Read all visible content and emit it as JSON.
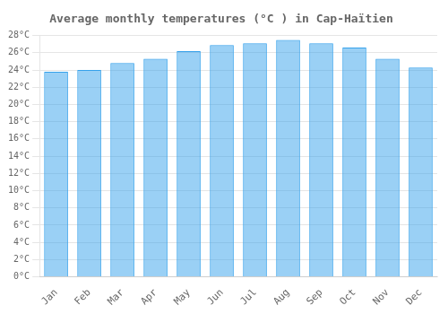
{
  "chart_data": {
    "type": "bar",
    "title": "Average monthly temperatures (°C ) in Cap-Haïtien",
    "categories": [
      "Jan",
      "Feb",
      "Mar",
      "Apr",
      "May",
      "Jun",
      "Jul",
      "Aug",
      "Sep",
      "Oct",
      "Nov",
      "Dec"
    ],
    "values": [
      23.8,
      24.0,
      24.8,
      25.3,
      26.2,
      26.9,
      27.1,
      27.5,
      27.1,
      26.6,
      25.3,
      24.3
    ],
    "ylim": [
      0,
      28
    ],
    "yticks": [
      {
        "value": 0,
        "label": "0°C"
      },
      {
        "value": 2,
        "label": "2°C"
      },
      {
        "value": 4,
        "label": "4°C"
      },
      {
        "value": 6,
        "label": "6°C"
      },
      {
        "value": 8,
        "label": "8°C"
      },
      {
        "value": 10,
        "label": "10°C"
      },
      {
        "value": 12,
        "label": "12°C"
      },
      {
        "value": 14,
        "label": "14°C"
      },
      {
        "value": 16,
        "label": "16°C"
      },
      {
        "value": 18,
        "label": "18°C"
      },
      {
        "value": 20,
        "label": "20°C"
      },
      {
        "value": 22,
        "label": "22°C"
      },
      {
        "value": 24,
        "label": "24°C"
      },
      {
        "value": 26,
        "label": "26°C"
      },
      {
        "value": 28,
        "label": "28°C"
      }
    ],
    "grid": true
  }
}
